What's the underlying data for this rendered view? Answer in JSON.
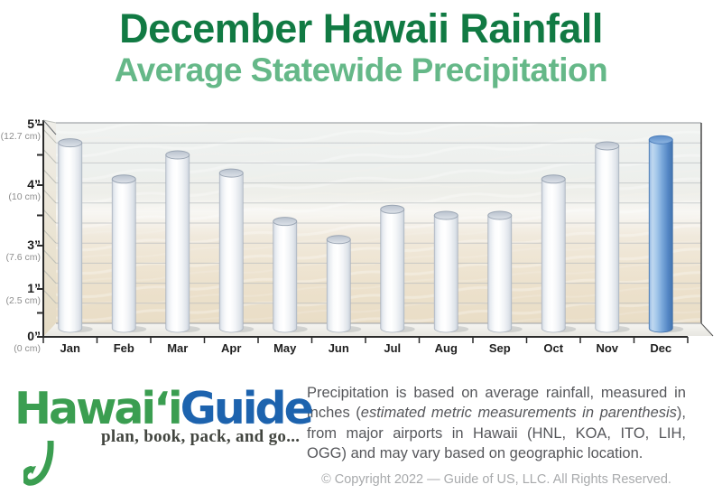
{
  "header": {
    "title": "December Hawaii Rainfall",
    "subtitle": "Average Statewide Precipitation"
  },
  "chart_data": {
    "type": "bar",
    "title": "December Hawaii Rainfall",
    "subtitle": "Average Statewide Precipitation",
    "categories": [
      "Jan",
      "Feb",
      "Mar",
      "Apr",
      "May",
      "Jun",
      "Jul",
      "Aug",
      "Sep",
      "Oct",
      "Nov",
      "Dec"
    ],
    "values": [
      4.7,
      4.1,
      4.5,
      4.2,
      3.4,
      3.1,
      3.6,
      3.5,
      3.5,
      4.1,
      4.65,
      4.75
    ],
    "unit": "inches",
    "ylim": [
      0,
      5
    ],
    "grid": true,
    "highlight_category": "Dec",
    "y_axis": {
      "major_ticks": [
        {
          "value": 5,
          "inch_label": "5”",
          "cm_label": "(12.7 cm)"
        },
        {
          "value": 4,
          "inch_label": "4”",
          "cm_label": "(10 cm)"
        },
        {
          "value": 3,
          "inch_label": "3”",
          "cm_label": "(7.6 cm)"
        },
        {
          "value": 1,
          "inch_label": "1”",
          "cm_label": "(2.5 cm)"
        },
        {
          "value": 0,
          "inch_label": "0”",
          "cm_label": "(0 cm)"
        }
      ],
      "minor_tick_values": [
        4.5,
        3.5,
        0.5
      ],
      "scale_anchors": [
        [
          0,
          1.0
        ],
        [
          1,
          0.779
        ],
        [
          3,
          0.579
        ],
        [
          4,
          0.3
        ],
        [
          5,
          0.021
        ]
      ]
    },
    "bar_style": {
      "default_color": "#ffffff",
      "highlight_color": "#5b8fc9"
    }
  },
  "footer": {
    "logo": {
      "brand_green": "Hawaiʻi",
      "brand_blue": "Guide",
      "tagline": "plan, book, pack, and go..."
    },
    "note_parts": {
      "before": "Precipitation is based on average rainfall, measured in inches (",
      "italic": "estimated metric measurements in parenthesis",
      "after": "), from major airports in Hawaii (HNL, KOA, ITO, LIH, OGG) and may vary based on geographic location."
    },
    "copyright": "© Copyright 2022 — Guide of US, LLC. All Rights Reserved."
  },
  "colors": {
    "title_green": "#117a43",
    "subtitle_green": "#65b888",
    "logo_green": "#3b9e51",
    "logo_blue": "#1d63ae",
    "note_gray": "#56575b",
    "copyright_gray": "#a8aaac"
  }
}
